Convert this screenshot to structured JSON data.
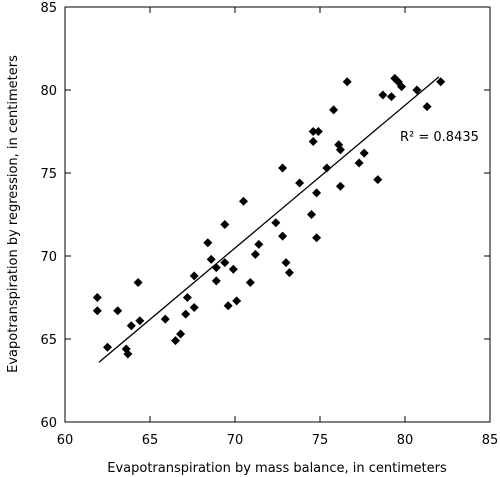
{
  "chart_data": {
    "type": "scatter",
    "x_label": "Evapotranspiration by mass balance, in centimeters",
    "y_label": "Evapotranspiration by regression, in centimeters",
    "annotation": "R² = 0.8435",
    "color": "#000000",
    "xlim": [
      60,
      85
    ],
    "ylim": [
      60,
      85
    ],
    "xticks": [
      60,
      65,
      70,
      75,
      80,
      85
    ],
    "yticks": [
      60,
      65,
      70,
      75,
      80,
      85
    ],
    "trendline": {
      "x": [
        62,
        82
      ],
      "y": [
        63.6,
        80.8
      ]
    },
    "x": [
      61.9,
      61.9,
      62.5,
      63.1,
      63.6,
      63.7,
      63.9,
      64.3,
      64.4,
      65.9,
      66.5,
      66.8,
      67.1,
      67.2,
      67.6,
      67.6,
      68.4,
      68.6,
      68.9,
      68.9,
      69.4,
      69.4,
      69.6,
      69.9,
      70.1,
      70.5,
      70.9,
      71.2,
      71.4,
      72.4,
      72.8,
      72.8,
      73.0,
      73.2,
      73.8,
      74.5,
      74.6,
      74.6,
      74.9,
      74.8,
      74.8,
      75.4,
      75.8,
      76.1,
      76.2,
      76.2,
      76.6,
      77.3,
      77.6,
      78.4,
      78.7,
      79.2,
      79.4,
      79.6,
      79.8,
      80.7,
      81.3,
      82.1
    ],
    "values": [
      67.5,
      66.7,
      64.5,
      66.7,
      64.4,
      64.1,
      65.8,
      68.4,
      66.1,
      66.2,
      64.9,
      65.3,
      66.5,
      67.5,
      66.9,
      68.8,
      70.8,
      69.8,
      69.3,
      68.5,
      69.6,
      71.9,
      67.0,
      69.2,
      67.3,
      73.3,
      68.4,
      70.1,
      70.7,
      72.0,
      71.2,
      75.3,
      69.6,
      69.0,
      74.4,
      72.5,
      76.9,
      77.5,
      77.5,
      73.8,
      71.1,
      75.3,
      78.8,
      76.7,
      76.4,
      74.2,
      80.5,
      75.6,
      76.2,
      74.6,
      79.7,
      79.6,
      80.7,
      80.5,
      80.2,
      80.0,
      79.0,
      80.5
    ]
  }
}
